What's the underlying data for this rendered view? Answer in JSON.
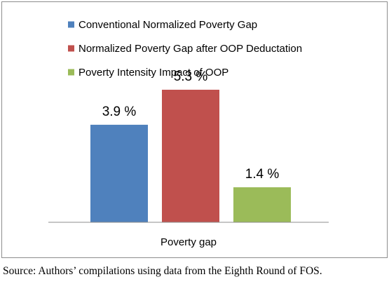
{
  "chart_data": {
    "type": "bar",
    "categories": [
      "Poverty gap"
    ],
    "series": [
      {
        "name": "Conventional Normalized Poverty Gap",
        "values": [
          3.9
        ],
        "color": "#4f81bd",
        "label": "3.9 %"
      },
      {
        "name": "Normalized Poverty Gap after OOP Deductation",
        "values": [
          5.3
        ],
        "color": "#c0504d",
        "label": "5.3 %"
      },
      {
        "name": "Poverty Intensity Impact of OOP",
        "values": [
          1.4
        ],
        "color": "#9bbb59",
        "label": "1.4 %"
      }
    ],
    "ylim": [
      0,
      6
    ],
    "grid": false,
    "legend_position": "top-left",
    "title": "",
    "xlabel": "",
    "ylabel": ""
  },
  "source_note": "Source: Authors’ compilations using data from the Eighth Round of FOS."
}
